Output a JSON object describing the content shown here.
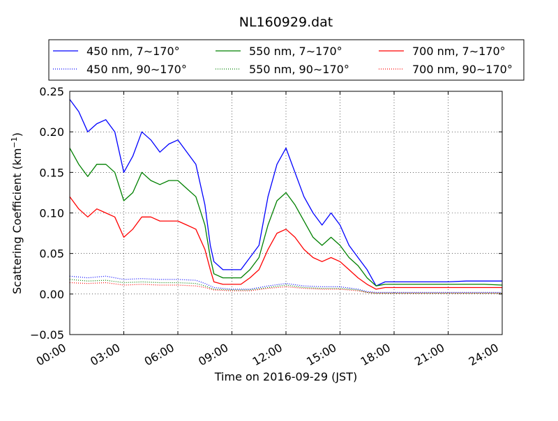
{
  "chart_data": {
    "type": "line",
    "title": "NL160929.dat",
    "xlabel": "Time on 2016-09-29 (JST)",
    "ylabel_main": "Scattering Coefficient (km",
    "ylabel_sup": "−1",
    "ylabel_close": ")",
    "xlim_hours": [
      0,
      24
    ],
    "ylim": [
      -0.05,
      0.25
    ],
    "xticks": [
      {
        "h": 0,
        "label": "00:00"
      },
      {
        "h": 3,
        "label": "03:00"
      },
      {
        "h": 6,
        "label": "06:00"
      },
      {
        "h": 9,
        "label": "09:00"
      },
      {
        "h": 12,
        "label": "12:00"
      },
      {
        "h": 15,
        "label": "15:00"
      },
      {
        "h": 18,
        "label": "18:00"
      },
      {
        "h": 21,
        "label": "21:00"
      },
      {
        "h": 24,
        "label": "24:00"
      }
    ],
    "yticks": [
      {
        "v": -0.05,
        "label": "−0.05"
      },
      {
        "v": 0.0,
        "label": "0.00"
      },
      {
        "v": 0.05,
        "label": "0.05"
      },
      {
        "v": 0.1,
        "label": "0.10"
      },
      {
        "v": 0.15,
        "label": "0.15"
      },
      {
        "v": 0.2,
        "label": "0.20"
      },
      {
        "v": 0.25,
        "label": "0.25"
      }
    ],
    "grid": true,
    "legend_position": "top, outside plot",
    "series": [
      {
        "name": "450 nm, 7∼170°",
        "color": "#0000ff",
        "style": "solid",
        "x": [
          0,
          0.5,
          1,
          1.5,
          2,
          2.5,
          3,
          3.5,
          4,
          4.5,
          5,
          5.5,
          6,
          6.5,
          7,
          7.5,
          7.8,
          8,
          8.5,
          9,
          9.5,
          10,
          10.5,
          11,
          11.5,
          12,
          12.5,
          13,
          13.5,
          14,
          14.5,
          15,
          15.5,
          16,
          16.5,
          17,
          17.5,
          18,
          19,
          20,
          21,
          22,
          23,
          24
        ],
        "y": [
          0.24,
          0.225,
          0.2,
          0.21,
          0.215,
          0.2,
          0.15,
          0.17,
          0.2,
          0.19,
          0.175,
          0.185,
          0.19,
          0.175,
          0.16,
          0.11,
          0.06,
          0.04,
          0.03,
          0.03,
          0.03,
          0.045,
          0.06,
          0.12,
          0.16,
          0.18,
          0.15,
          0.12,
          0.1,
          0.085,
          0.1,
          0.085,
          0.06,
          0.045,
          0.03,
          0.01,
          0.015,
          0.015,
          0.015,
          0.015,
          0.015,
          0.016,
          0.016,
          0.016
        ]
      },
      {
        "name": "550 nm, 7∼170°",
        "color": "#008000",
        "style": "solid",
        "x": [
          0,
          0.5,
          1,
          1.5,
          2,
          2.5,
          3,
          3.5,
          4,
          4.5,
          5,
          5.5,
          6,
          6.5,
          7,
          7.5,
          7.8,
          8,
          8.5,
          9,
          9.5,
          10,
          10.5,
          11,
          11.5,
          12,
          12.5,
          13,
          13.5,
          14,
          14.5,
          15,
          15.5,
          16,
          16.5,
          17,
          17.5,
          18,
          19,
          20,
          21,
          22,
          23,
          24
        ],
        "y": [
          0.18,
          0.16,
          0.145,
          0.16,
          0.16,
          0.15,
          0.115,
          0.125,
          0.15,
          0.14,
          0.135,
          0.14,
          0.14,
          0.13,
          0.12,
          0.085,
          0.045,
          0.025,
          0.02,
          0.02,
          0.02,
          0.03,
          0.045,
          0.085,
          0.115,
          0.125,
          0.11,
          0.09,
          0.07,
          0.06,
          0.07,
          0.06,
          0.045,
          0.035,
          0.02,
          0.01,
          0.012,
          0.012,
          0.012,
          0.012,
          0.012,
          0.012,
          0.012,
          0.011
        ]
      },
      {
        "name": "700 nm, 7∼170°",
        "color": "#ff0000",
        "style": "solid",
        "x": [
          0,
          0.5,
          1,
          1.5,
          2,
          2.5,
          3,
          3.5,
          4,
          4.5,
          5,
          5.5,
          6,
          6.5,
          7,
          7.5,
          7.8,
          8,
          8.5,
          9,
          9.5,
          10,
          10.5,
          11,
          11.5,
          12,
          12.5,
          13,
          13.5,
          14,
          14.5,
          15,
          15.5,
          16,
          16.5,
          17,
          17.5,
          18,
          19,
          20,
          21,
          22,
          23,
          24
        ],
        "y": [
          0.12,
          0.105,
          0.095,
          0.105,
          0.1,
          0.095,
          0.07,
          0.08,
          0.095,
          0.095,
          0.09,
          0.09,
          0.09,
          0.085,
          0.08,
          0.055,
          0.03,
          0.015,
          0.012,
          0.012,
          0.012,
          0.02,
          0.03,
          0.055,
          0.075,
          0.08,
          0.07,
          0.055,
          0.045,
          0.04,
          0.045,
          0.04,
          0.03,
          0.02,
          0.012,
          0.006,
          0.008,
          0.008,
          0.008,
          0.008,
          0.008,
          0.008,
          0.008,
          0.008
        ]
      },
      {
        "name": "450 nm, 90∼170°",
        "color": "#0000ff",
        "style": "dotted",
        "x": [
          0,
          1,
          2,
          3,
          4,
          5,
          6,
          7,
          7.5,
          8,
          9,
          10,
          11,
          12,
          13,
          14,
          15,
          16,
          16.5,
          17,
          18,
          20,
          22,
          24
        ],
        "y": [
          0.022,
          0.02,
          0.022,
          0.018,
          0.019,
          0.018,
          0.018,
          0.017,
          0.013,
          0.008,
          0.006,
          0.006,
          0.01,
          0.013,
          0.01,
          0.009,
          0.009,
          0.006,
          0.003,
          0.002,
          0.002,
          0.002,
          0.002,
          0.002
        ]
      },
      {
        "name": "550 nm, 90∼170°",
        "color": "#008000",
        "style": "dotted",
        "x": [
          0,
          1,
          2,
          3,
          4,
          5,
          6,
          7,
          7.5,
          8,
          9,
          10,
          11,
          12,
          13,
          14,
          15,
          16,
          16.5,
          17,
          18,
          20,
          22,
          24
        ],
        "y": [
          0.018,
          0.016,
          0.017,
          0.014,
          0.015,
          0.014,
          0.014,
          0.013,
          0.01,
          0.006,
          0.005,
          0.005,
          0.008,
          0.011,
          0.008,
          0.007,
          0.007,
          0.005,
          0.002,
          0.001,
          0.001,
          0.001,
          0.001,
          0.001
        ]
      },
      {
        "name": "700 nm, 90∼170°",
        "color": "#ff0000",
        "style": "dotted",
        "x": [
          0,
          1,
          2,
          3,
          4,
          5,
          6,
          7,
          7.5,
          8,
          9,
          10,
          11,
          12,
          13,
          14,
          15,
          16,
          16.5,
          17,
          18,
          20,
          22,
          24
        ],
        "y": [
          0.014,
          0.013,
          0.014,
          0.011,
          0.012,
          0.011,
          0.011,
          0.01,
          0.008,
          0.005,
          0.004,
          0.004,
          0.007,
          0.009,
          0.007,
          0.006,
          0.006,
          0.004,
          0.002,
          0.001,
          0.001,
          0.001,
          0.001,
          0.001
        ]
      }
    ]
  }
}
